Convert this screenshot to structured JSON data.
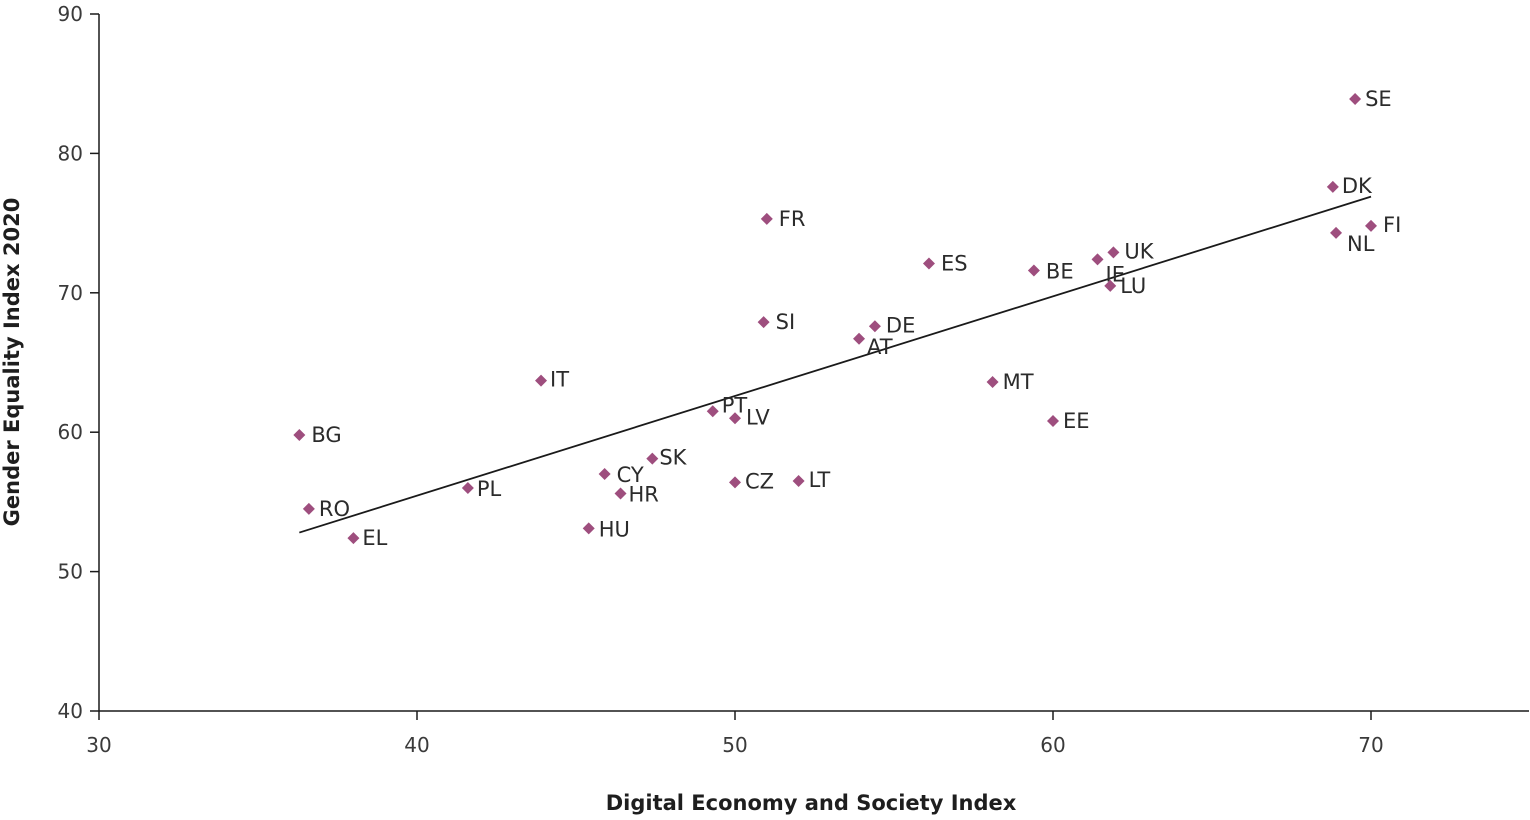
{
  "chart_data": {
    "type": "scatter",
    "title": "",
    "xlabel": "Digital Economy and Society Index",
    "ylabel": "Gender Equality Index 2020",
    "xlim": [
      30,
      75
    ],
    "ylim": [
      40,
      90
    ],
    "xticks": [
      30,
      40,
      50,
      60,
      70
    ],
    "yticks": [
      40,
      50,
      60,
      70,
      80,
      90
    ],
    "grid": false,
    "legend": "none",
    "marker_color": "#9e4e7e",
    "trendline": {
      "x": [
        36.3,
        70.0
      ],
      "y": [
        52.8,
        76.9
      ]
    },
    "points": [
      {
        "label": "SE",
        "x": 69.5,
        "y": 83.9
      },
      {
        "label": "DK",
        "x": 68.8,
        "y": 77.6
      },
      {
        "label": "FI",
        "x": 70.0,
        "y": 74.8
      },
      {
        "label": "NL",
        "x": 68.9,
        "y": 74.3
      },
      {
        "label": "FR",
        "x": 51.0,
        "y": 75.3
      },
      {
        "label": "ES",
        "x": 56.1,
        "y": 72.1
      },
      {
        "label": "BE",
        "x": 59.4,
        "y": 71.6
      },
      {
        "label": "IE",
        "x": 61.4,
        "y": 72.4
      },
      {
        "label": "UK",
        "x": 61.9,
        "y": 72.9
      },
      {
        "label": "LU",
        "x": 61.8,
        "y": 70.5
      },
      {
        "label": "SI",
        "x": 50.9,
        "y": 67.9
      },
      {
        "label": "DE",
        "x": 54.4,
        "y": 67.6
      },
      {
        "label": "AT",
        "x": 53.9,
        "y": 66.7
      },
      {
        "label": "MT",
        "x": 58.1,
        "y": 63.6
      },
      {
        "label": "IT",
        "x": 43.9,
        "y": 63.7
      },
      {
        "label": "EE",
        "x": 60.0,
        "y": 60.8
      },
      {
        "label": "PT",
        "x": 49.3,
        "y": 61.5
      },
      {
        "label": "LV",
        "x": 50.0,
        "y": 61.0
      },
      {
        "label": "BG",
        "x": 36.3,
        "y": 59.8
      },
      {
        "label": "SK",
        "x": 47.4,
        "y": 58.1
      },
      {
        "label": "CY",
        "x": 45.9,
        "y": 57.0
      },
      {
        "label": "HR",
        "x": 46.4,
        "y": 55.6
      },
      {
        "label": "PL",
        "x": 41.6,
        "y": 56.0
      },
      {
        "label": "CZ",
        "x": 50.0,
        "y": 56.4
      },
      {
        "label": "LT",
        "x": 52.0,
        "y": 56.5
      },
      {
        "label": "RO",
        "x": 36.6,
        "y": 54.5
      },
      {
        "label": "HU",
        "x": 45.4,
        "y": 53.1
      },
      {
        "label": "EL",
        "x": 38.0,
        "y": 52.4
      }
    ]
  }
}
